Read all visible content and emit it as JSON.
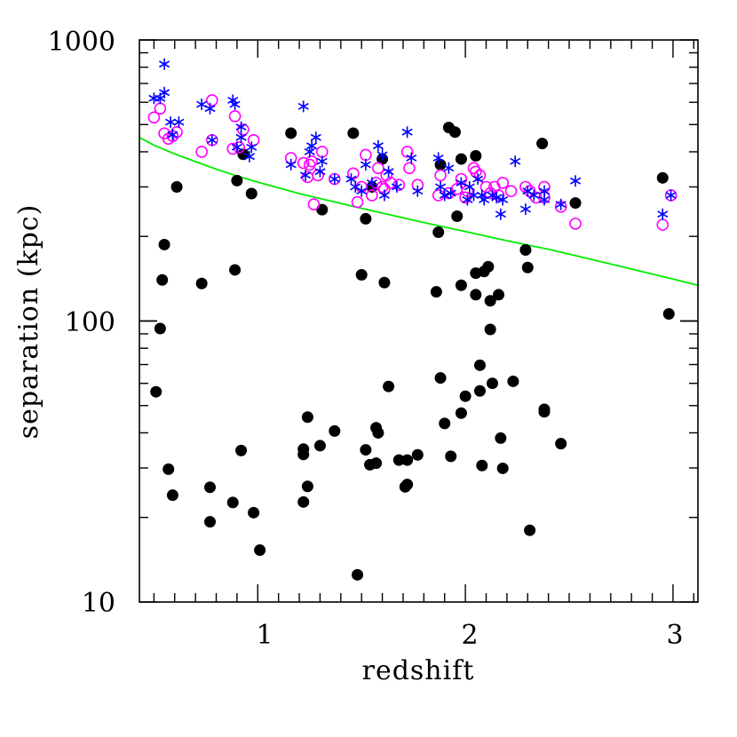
{
  "chart_data": {
    "type": "scatter",
    "title": "",
    "xlabel": "redshift",
    "ylabel": "separation (kpc)",
    "xscale": "linear",
    "yscale": "log",
    "xlim": [
      0.43,
      3.12
    ],
    "ylim": [
      10,
      1000
    ],
    "x_ticks": [
      1,
      2,
      3
    ],
    "x_tick_labels": [
      "1",
      "2",
      "3"
    ],
    "y_ticks": [
      10,
      100,
      1000
    ],
    "y_tick_labels": [
      "10",
      "100",
      "1000"
    ],
    "grid": false,
    "legend": "none",
    "colors": {
      "filled": "#000000",
      "open_circle": "#ff00ff",
      "star": "#0000ff",
      "curve": "#00ee00"
    },
    "series": [
      {
        "name": "filled-circles",
        "marker": "filled-circle",
        "color": "#000000",
        "points": [
          [
            0.51,
            56
          ],
          [
            0.53,
            94
          ],
          [
            0.54,
            140
          ],
          [
            0.55,
            187
          ],
          [
            0.57,
            29.7
          ],
          [
            0.59,
            24
          ],
          [
            0.61,
            300
          ],
          [
            0.73,
            136
          ],
          [
            0.77,
            25.6
          ],
          [
            0.77,
            19.3
          ],
          [
            0.88,
            22.6
          ],
          [
            0.89,
            152
          ],
          [
            0.9,
            316
          ],
          [
            0.92,
            34.6
          ],
          [
            0.93,
            392
          ],
          [
            0.97,
            284
          ],
          [
            0.98,
            20.8
          ],
          [
            1.01,
            15.3
          ],
          [
            1.16,
            466
          ],
          [
            1.22,
            22.7
          ],
          [
            1.22,
            33.5
          ],
          [
            1.22,
            35
          ],
          [
            1.24,
            45.5
          ],
          [
            1.24,
            25.8
          ],
          [
            1.3,
            36
          ],
          [
            1.31,
            249
          ],
          [
            1.37,
            40.6
          ],
          [
            1.46,
            466
          ],
          [
            1.48,
            12.5
          ],
          [
            1.5,
            146
          ],
          [
            1.52,
            231
          ],
          [
            1.52,
            34.8
          ],
          [
            1.54,
            30.8
          ],
          [
            1.55,
            300
          ],
          [
            1.57,
            41.7
          ],
          [
            1.57,
            31.2
          ],
          [
            1.58,
            40
          ],
          [
            1.6,
            377
          ],
          [
            1.61,
            137
          ],
          [
            1.63,
            58.5
          ],
          [
            1.68,
            32
          ],
          [
            1.71,
            25.7
          ],
          [
            1.72,
            32
          ],
          [
            1.72,
            26.2
          ],
          [
            1.77,
            33.4
          ],
          [
            1.86,
            127
          ],
          [
            1.87,
            207
          ],
          [
            1.88,
            360
          ],
          [
            1.88,
            62.7
          ],
          [
            1.9,
            43.2
          ],
          [
            1.92,
            488
          ],
          [
            1.93,
            33
          ],
          [
            1.95,
            470
          ],
          [
            1.96,
            236
          ],
          [
            1.98,
            134
          ],
          [
            1.98,
            377
          ],
          [
            1.98,
            47
          ],
          [
            2,
            54
          ],
          [
            2.05,
            148
          ],
          [
            2.05,
            124
          ],
          [
            2.05,
            387
          ],
          [
            2.07,
            69.6
          ],
          [
            2.07,
            56.4
          ],
          [
            2.08,
            30.6
          ],
          [
            2.09,
            150
          ],
          [
            2.11,
            156
          ],
          [
            2.12,
            118
          ],
          [
            2.12,
            93.3
          ],
          [
            2.13,
            60
          ],
          [
            2.16,
            124
          ],
          [
            2.17,
            38.3
          ],
          [
            2.18,
            29.9
          ],
          [
            2.23,
            61
          ],
          [
            2.29,
            179
          ],
          [
            2.3,
            155
          ],
          [
            2.31,
            18
          ],
          [
            2.37,
            428
          ],
          [
            2.38,
            48.5
          ],
          [
            2.38,
            47.5
          ],
          [
            2.46,
            36.6
          ],
          [
            2.53,
            263
          ],
          [
            2.95,
            323
          ],
          [
            2.98,
            106
          ]
        ]
      },
      {
        "name": "open-circles",
        "marker": "open-circle",
        "color": "#ff00ff",
        "points": [
          [
            0.5,
            530
          ],
          [
            0.53,
            570
          ],
          [
            0.55,
            465
          ],
          [
            0.57,
            445
          ],
          [
            0.59,
            455
          ],
          [
            0.61,
            470
          ],
          [
            0.73,
            400
          ],
          [
            0.78,
            440
          ],
          [
            0.78,
            610
          ],
          [
            0.88,
            410
          ],
          [
            0.89,
            535
          ],
          [
            0.91,
            415
          ],
          [
            0.93,
            480
          ],
          [
            0.98,
            440
          ],
          [
            1.16,
            380
          ],
          [
            1.22,
            365
          ],
          [
            1.24,
            325
          ],
          [
            1.25,
            360
          ],
          [
            1.26,
            370
          ],
          [
            1.27,
            260
          ],
          [
            1.29,
            330
          ],
          [
            1.31,
            400
          ],
          [
            1.37,
            320
          ],
          [
            1.46,
            335
          ],
          [
            1.48,
            265
          ],
          [
            1.5,
            300
          ],
          [
            1.52,
            390
          ],
          [
            1.55,
            280
          ],
          [
            1.57,
            310
          ],
          [
            1.58,
            350
          ],
          [
            1.6,
            300
          ],
          [
            1.61,
            295
          ],
          [
            1.62,
            330
          ],
          [
            1.64,
            310
          ],
          [
            1.68,
            305
          ],
          [
            1.72,
            400
          ],
          [
            1.73,
            350
          ],
          [
            1.77,
            305
          ],
          [
            1.87,
            280
          ],
          [
            1.88,
            330
          ],
          [
            1.92,
            285
          ],
          [
            1.96,
            295
          ],
          [
            1.98,
            320
          ],
          [
            2,
            275
          ],
          [
            2.01,
            290
          ],
          [
            2.04,
            350
          ],
          [
            2.05,
            340
          ],
          [
            2.07,
            330
          ],
          [
            2.1,
            300
          ],
          [
            2.12,
            285
          ],
          [
            2.14,
            300
          ],
          [
            2.16,
            280
          ],
          [
            2.18,
            310
          ],
          [
            2.22,
            290
          ],
          [
            2.29,
            300
          ],
          [
            2.31,
            290
          ],
          [
            2.34,
            275
          ],
          [
            2.38,
            300
          ],
          [
            2.38,
            275
          ],
          [
            2.46,
            255
          ],
          [
            2.53,
            222
          ],
          [
            2.95,
            220
          ],
          [
            2.99,
            280
          ]
        ]
      },
      {
        "name": "stars",
        "marker": "star",
        "color": "#0000ff",
        "points": [
          [
            0.5,
            620
          ],
          [
            0.53,
            620
          ],
          [
            0.55,
            820
          ],
          [
            0.55,
            650
          ],
          [
            0.58,
            510
          ],
          [
            0.59,
            460
          ],
          [
            0.62,
            510
          ],
          [
            0.73,
            590
          ],
          [
            0.77,
            570
          ],
          [
            0.78,
            440
          ],
          [
            0.88,
            610
          ],
          [
            0.89,
            590
          ],
          [
            0.9,
            415
          ],
          [
            0.92,
            490
          ],
          [
            0.92,
            450
          ],
          [
            0.96,
            385
          ],
          [
            0.97,
            415
          ],
          [
            1.16,
            360
          ],
          [
            1.22,
            580
          ],
          [
            1.23,
            330
          ],
          [
            1.25,
            400
          ],
          [
            1.26,
            420
          ],
          [
            1.28,
            450
          ],
          [
            1.3,
            340
          ],
          [
            1.31,
            370
          ],
          [
            1.37,
            320
          ],
          [
            1.45,
            320
          ],
          [
            1.47,
            300
          ],
          [
            1.5,
            290
          ],
          [
            1.52,
            360
          ],
          [
            1.55,
            310
          ],
          [
            1.58,
            420
          ],
          [
            1.6,
            390
          ],
          [
            1.61,
            280
          ],
          [
            1.63,
            340
          ],
          [
            1.67,
            300
          ],
          [
            1.72,
            470
          ],
          [
            1.74,
            380
          ],
          [
            1.77,
            290
          ],
          [
            1.87,
            380
          ],
          [
            1.88,
            300
          ],
          [
            1.9,
            280
          ],
          [
            1.92,
            350
          ],
          [
            1.93,
            285
          ],
          [
            1.98,
            310
          ],
          [
            2.01,
            270
          ],
          [
            2.02,
            300
          ],
          [
            2.04,
            280
          ],
          [
            2.06,
            320
          ],
          [
            2.08,
            280
          ],
          [
            2.09,
            270
          ],
          [
            2.13,
            280
          ],
          [
            2.15,
            275
          ],
          [
            2.17,
            240
          ],
          [
            2.18,
            270
          ],
          [
            2.24,
            370
          ],
          [
            2.29,
            250
          ],
          [
            2.3,
            290
          ],
          [
            2.33,
            280
          ],
          [
            2.38,
            270
          ],
          [
            2.38,
            290
          ],
          [
            2.46,
            260
          ],
          [
            2.53,
            315
          ],
          [
            2.95,
            240
          ],
          [
            2.99,
            280
          ]
        ]
      }
    ],
    "curve": {
      "name": "model-curve",
      "color": "#00ee00",
      "points": [
        [
          0.43,
          450
        ],
        [
          0.5,
          422
        ],
        [
          0.6,
          393
        ],
        [
          0.7,
          369
        ],
        [
          0.8,
          347
        ],
        [
          0.9,
          328
        ],
        [
          1.0,
          312
        ],
        [
          1.2,
          284
        ],
        [
          1.4,
          262
        ],
        [
          1.6,
          242
        ],
        [
          1.8,
          224
        ],
        [
          2.0,
          208
        ],
        [
          2.2,
          193
        ],
        [
          2.4,
          180
        ],
        [
          2.6,
          166
        ],
        [
          2.8,
          153
        ],
        [
          3.0,
          141
        ],
        [
          3.12,
          134
        ]
      ]
    }
  }
}
